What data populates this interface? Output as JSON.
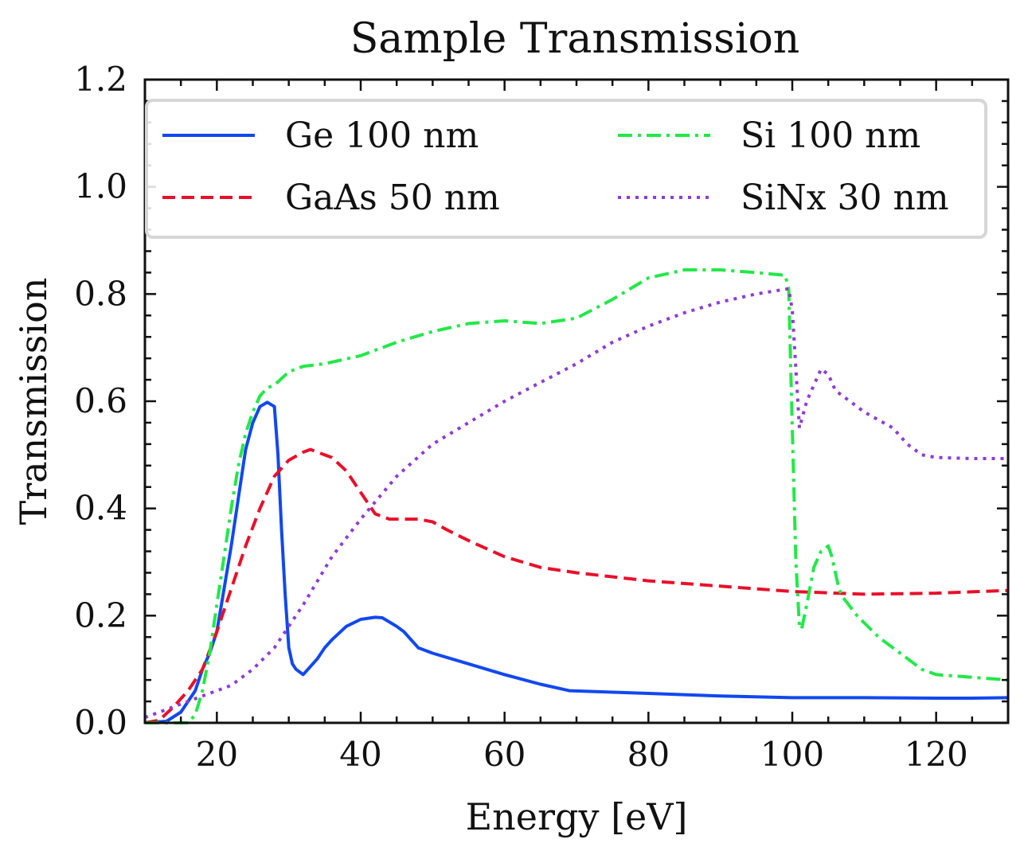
{
  "chart_data": {
    "type": "line",
    "title": "Sample Transmission",
    "xlabel": "Energy [eV]",
    "ylabel": "Transmission",
    "xlim": [
      10,
      130
    ],
    "ylim": [
      0,
      1.2
    ],
    "xticks": [
      20,
      40,
      60,
      80,
      100,
      120
    ],
    "yticks": [
      0.0,
      0.2,
      0.4,
      0.6,
      0.8,
      1.0,
      1.2
    ],
    "xtick_labels": [
      "20",
      "40",
      "60",
      "80",
      "100",
      "120"
    ],
    "ytick_labels": [
      "0.0",
      "0.2",
      "0.4",
      "0.6",
      "0.8",
      "1.0",
      "1.2"
    ],
    "grid": false,
    "legend": {
      "placement": "top",
      "columns": 2
    },
    "series": [
      {
        "name": "Ge 100 nm",
        "color": "#1248F0",
        "style": "solid",
        "x": [
          10,
          13,
          15,
          17,
          18,
          19,
          20,
          21,
          22,
          23,
          24,
          25,
          26,
          27,
          28,
          28.5,
          29,
          29.5,
          30,
          30.5,
          31,
          32,
          33,
          34,
          35,
          36,
          38,
          40,
          42,
          43,
          45,
          46,
          48,
          50,
          55,
          60,
          65,
          69,
          80,
          90,
          100,
          110,
          120,
          125,
          130
        ],
        "y": [
          0.0,
          0.003,
          0.02,
          0.06,
          0.1,
          0.13,
          0.17,
          0.25,
          0.33,
          0.42,
          0.51,
          0.56,
          0.59,
          0.598,
          0.59,
          0.5,
          0.36,
          0.24,
          0.14,
          0.11,
          0.1,
          0.09,
          0.105,
          0.12,
          0.14,
          0.155,
          0.18,
          0.193,
          0.197,
          0.196,
          0.18,
          0.17,
          0.14,
          0.13,
          0.11,
          0.09,
          0.072,
          0.06,
          0.055,
          0.05,
          0.047,
          0.047,
          0.046,
          0.046,
          0.047
        ]
      },
      {
        "name": "GaAs 50 nm",
        "color": "#E8102A",
        "style": "dashed",
        "x": [
          10,
          12,
          14,
          16,
          18,
          20,
          22,
          24,
          26,
          28,
          30,
          32,
          33,
          34,
          36,
          38,
          40,
          42,
          44,
          46,
          48,
          50,
          52,
          55,
          60,
          65,
          70,
          80,
          90,
          100,
          110,
          120,
          130
        ],
        "y": [
          0.0,
          0.005,
          0.03,
          0.06,
          0.1,
          0.17,
          0.25,
          0.33,
          0.4,
          0.46,
          0.49,
          0.505,
          0.51,
          0.505,
          0.495,
          0.47,
          0.43,
          0.39,
          0.38,
          0.38,
          0.38,
          0.375,
          0.36,
          0.34,
          0.31,
          0.29,
          0.28,
          0.265,
          0.255,
          0.245,
          0.24,
          0.242,
          0.247
        ]
      },
      {
        "name": "Si 100 nm",
        "color": "#22E848",
        "style": "dashdot",
        "x": [
          10,
          16,
          17,
          18,
          19,
          20,
          21,
          22,
          23,
          24,
          25,
          26,
          27,
          28,
          30,
          32,
          35,
          40,
          45,
          50,
          55,
          60,
          65,
          70,
          75,
          80,
          85,
          90,
          95,
          99,
          99.5,
          100,
          100.5,
          101,
          101.3,
          102,
          103,
          104,
          105,
          105.5,
          106,
          106.5,
          107,
          109,
          112,
          115,
          118,
          120,
          125,
          130
        ],
        "y": [
          0.0,
          0.0,
          0.015,
          0.06,
          0.13,
          0.22,
          0.31,
          0.4,
          0.48,
          0.54,
          0.58,
          0.61,
          0.625,
          0.63,
          0.655,
          0.665,
          0.67,
          0.685,
          0.71,
          0.73,
          0.745,
          0.75,
          0.745,
          0.755,
          0.79,
          0.83,
          0.845,
          0.845,
          0.84,
          0.835,
          0.81,
          0.55,
          0.3,
          0.18,
          0.175,
          0.22,
          0.29,
          0.32,
          0.33,
          0.31,
          0.28,
          0.25,
          0.235,
          0.2,
          0.16,
          0.13,
          0.1,
          0.09,
          0.085,
          0.08
        ]
      },
      {
        "name": "SiNx 30 nm",
        "color": "#8F3BD6",
        "style": "dotted",
        "x": [
          10,
          14,
          18,
          22,
          25,
          28,
          32,
          36,
          40,
          45,
          50,
          55,
          60,
          65,
          70,
          75,
          80,
          85,
          90,
          95,
          99.5,
          100,
          101,
          102,
          103,
          104,
          105,
          106,
          108,
          110,
          114,
          116,
          118,
          120,
          125,
          130
        ],
        "y": [
          0.01,
          0.03,
          0.05,
          0.07,
          0.1,
          0.14,
          0.22,
          0.31,
          0.38,
          0.46,
          0.52,
          0.56,
          0.6,
          0.635,
          0.67,
          0.71,
          0.74,
          0.765,
          0.785,
          0.8,
          0.81,
          0.77,
          0.55,
          0.6,
          0.63,
          0.66,
          0.65,
          0.62,
          0.6,
          0.58,
          0.55,
          0.52,
          0.5,
          0.495,
          0.493,
          0.493
        ]
      }
    ]
  }
}
